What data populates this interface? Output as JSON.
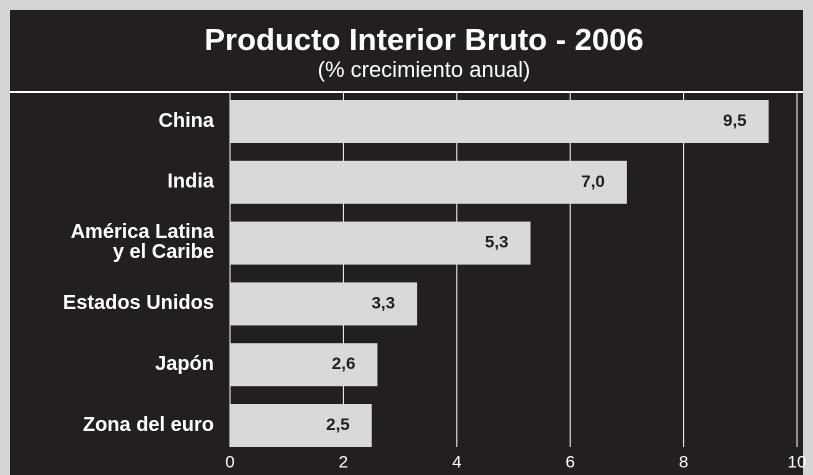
{
  "chart_data": {
    "type": "bar",
    "orientation": "horizontal",
    "title": "Producto Interior Bruto - 2006",
    "subtitle": "(% crecimiento anual)",
    "categories": [
      "China",
      "India",
      "América Latina\ny el Caribe",
      "Estados Unidos",
      "Japón",
      "Zona del euro"
    ],
    "values": [
      9.5,
      7.0,
      5.3,
      3.3,
      2.6,
      2.5
    ],
    "value_labels": [
      "9,5",
      "7,0",
      "5,3",
      "3,3",
      "2,6",
      "2,5"
    ],
    "color": "#d9d9d9",
    "xlim": [
      0,
      10
    ],
    "xticks": [
      0,
      2,
      4,
      6,
      8,
      10
    ],
    "grid": true
  }
}
